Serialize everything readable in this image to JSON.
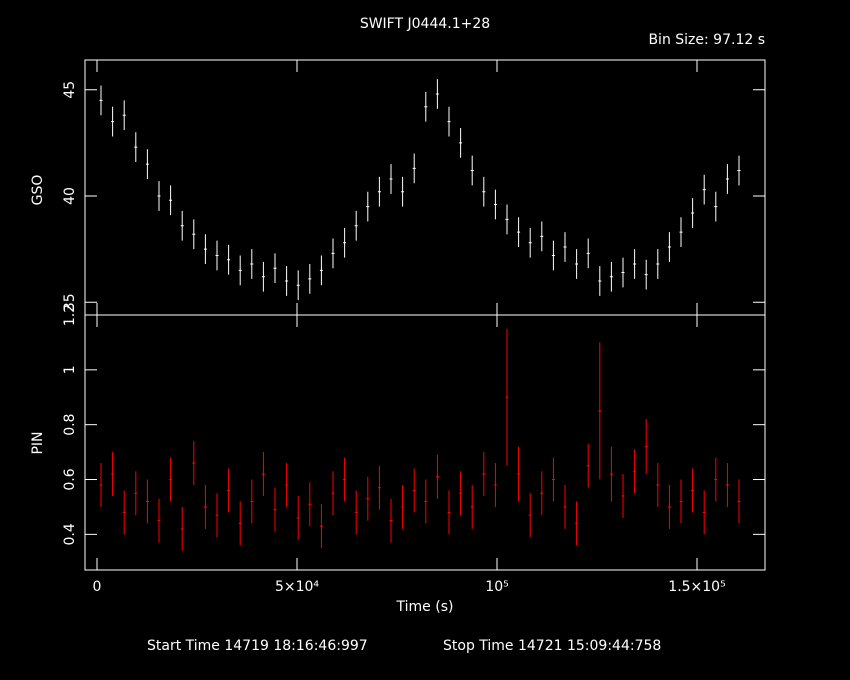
{
  "bin_size": "Bin Size: 97.12 s",
  "start_time": "Start Time 14719 18:16:46:997",
  "stop_time": "Stop Time 14721 15:09:44:758",
  "chart_data": [
    {
      "type": "scatter",
      "title": "SWIFT J0444.1+28",
      "ylabel": "GSO",
      "x": [
        1000,
        3900,
        6800,
        9700,
        12600,
        15500,
        18400,
        21300,
        24200,
        27100,
        30000,
        32900,
        35800,
        38700,
        41600,
        44500,
        47400,
        50300,
        53200,
        56100,
        59000,
        61900,
        64800,
        67700,
        70600,
        73500,
        76400,
        79300,
        82200,
        85100,
        88000,
        90900,
        93800,
        96700,
        99600,
        102500,
        105400,
        108300,
        111200,
        114100,
        117000,
        119900,
        122800,
        125700,
        128600,
        131500,
        134400,
        137300,
        140200,
        143100,
        146000,
        148900,
        151800,
        154700,
        157600,
        160500
      ],
      "series": [
        {
          "name": "GSO",
          "color": "#ffffff",
          "values": [
            44.5,
            43.5,
            43.8,
            42.3,
            41.5,
            40.0,
            39.8,
            38.6,
            38.2,
            37.5,
            37.2,
            37.0,
            36.5,
            36.8,
            36.2,
            36.6,
            36.0,
            35.8,
            36.1,
            36.5,
            37.3,
            37.8,
            38.6,
            39.5,
            40.2,
            40.8,
            40.2,
            41.3,
            44.2,
            44.8,
            43.5,
            42.5,
            41.2,
            40.2,
            39.6,
            38.9,
            38.3,
            37.8,
            38.1,
            37.2,
            37.6,
            36.8,
            37.3,
            36.0,
            36.2,
            36.4,
            36.8,
            36.3,
            36.8,
            37.6,
            38.3,
            39.2,
            40.3,
            39.5,
            40.8,
            41.2
          ],
          "errors": [
            0.7,
            0.7,
            0.7,
            0.7,
            0.7,
            0.7,
            0.7,
            0.7,
            0.7,
            0.7,
            0.7,
            0.7,
            0.7,
            0.7,
            0.7,
            0.7,
            0.7,
            0.7,
            0.7,
            0.7,
            0.7,
            0.7,
            0.7,
            0.7,
            0.7,
            0.7,
            0.7,
            0.7,
            0.7,
            0.7,
            0.7,
            0.7,
            0.7,
            0.7,
            0.7,
            0.7,
            0.7,
            0.7,
            0.7,
            0.7,
            0.7,
            0.7,
            0.7,
            0.7,
            0.7,
            0.7,
            0.7,
            0.7,
            0.7,
            0.7,
            0.7,
            0.7,
            0.7,
            0.7,
            0.7,
            0.7
          ]
        }
      ],
      "xlim": [
        -3000,
        167000
      ],
      "ylim": [
        34.4,
        46.4
      ],
      "yticks": [
        35,
        40,
        45
      ]
    },
    {
      "type": "scatter",
      "ylabel": "PIN",
      "xlabel": "Time (s)",
      "x": [
        1000,
        3900,
        6800,
        9700,
        12600,
        15500,
        18400,
        21300,
        24200,
        27100,
        30000,
        32900,
        35800,
        38700,
        41600,
        44500,
        47400,
        50300,
        53200,
        56100,
        59000,
        61900,
        64800,
        67700,
        70600,
        73500,
        76400,
        79300,
        82200,
        85100,
        88000,
        90900,
        93800,
        96700,
        99600,
        102500,
        105400,
        108300,
        111200,
        114100,
        117000,
        119900,
        122800,
        125700,
        128600,
        131500,
        134400,
        137300,
        140200,
        143100,
        146000,
        148900,
        151800,
        154700,
        157600,
        160500
      ],
      "series": [
        {
          "name": "PIN",
          "color": "#ff0000",
          "values": [
            0.58,
            0.62,
            0.48,
            0.55,
            0.52,
            0.45,
            0.6,
            0.42,
            0.66,
            0.5,
            0.47,
            0.56,
            0.44,
            0.52,
            0.62,
            0.49,
            0.58,
            0.46,
            0.51,
            0.43,
            0.55,
            0.6,
            0.48,
            0.53,
            0.57,
            0.45,
            0.5,
            0.56,
            0.52,
            0.61,
            0.48,
            0.55,
            0.5,
            0.62,
            0.58,
            0.9,
            0.62,
            0.47,
            0.55,
            0.6,
            0.5,
            0.44,
            0.65,
            0.85,
            0.62,
            0.54,
            0.63,
            0.72,
            0.58,
            0.5,
            0.52,
            0.56,
            0.48,
            0.6,
            0.58,
            0.52
          ],
          "errors": [
            0.08,
            0.08,
            0.08,
            0.08,
            0.08,
            0.08,
            0.08,
            0.08,
            0.08,
            0.08,
            0.08,
            0.08,
            0.08,
            0.08,
            0.08,
            0.08,
            0.08,
            0.08,
            0.08,
            0.08,
            0.08,
            0.08,
            0.08,
            0.08,
            0.08,
            0.08,
            0.08,
            0.08,
            0.08,
            0.08,
            0.08,
            0.08,
            0.08,
            0.08,
            0.08,
            0.25,
            0.1,
            0.08,
            0.08,
            0.08,
            0.08,
            0.08,
            0.08,
            0.25,
            0.1,
            0.08,
            0.08,
            0.1,
            0.08,
            0.08,
            0.08,
            0.08,
            0.08,
            0.08,
            0.08,
            0.08
          ]
        }
      ],
      "xlim": [
        -3000,
        167000
      ],
      "ylim": [
        0.27,
        1.2
      ],
      "yticks": [
        0.4,
        0.6,
        0.8,
        1,
        1.2
      ],
      "xticks": [
        0,
        {
          "value": 50000,
          "label": "5×10⁴"
        },
        {
          "value": 100000,
          "label": "10⁵"
        },
        {
          "value": 150000,
          "label": "1.5×10⁵"
        }
      ]
    }
  ]
}
